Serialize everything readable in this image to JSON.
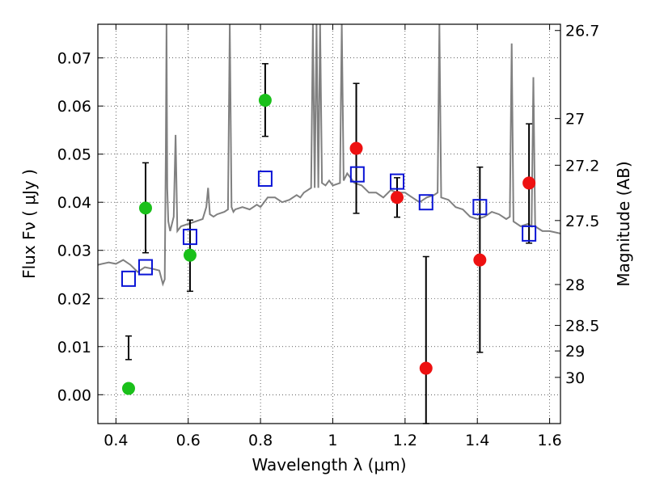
{
  "chart_data": {
    "type": "scatter",
    "xlabel": "Wavelength  λ (μm)",
    "ylabel": "Flux  Fν  ( μJy )",
    "y2label": "Magnitude (AB)",
    "xlim": [
      0.35,
      1.63
    ],
    "ylim": [
      -0.006,
      0.077
    ],
    "grid": true,
    "x_ticks": [
      0.4,
      0.6,
      0.8,
      1.0,
      1.2,
      1.4,
      1.6
    ],
    "x_tick_labels": [
      "0.4",
      "0.6",
      "0.8",
      "1",
      "1.2",
      "1.4",
      "1.6"
    ],
    "y_ticks": [
      0.0,
      0.01,
      0.02,
      0.03,
      0.04,
      0.05,
      0.06,
      0.07
    ],
    "y_tick_labels": [
      "0.00",
      "0.01",
      "0.02",
      "0.03",
      "0.04",
      "0.05",
      "0.06",
      "0.07"
    ],
    "y2_ticks": [
      {
        "label": "26.7",
        "flux": 0.0757
      },
      {
        "label": "27",
        "flux": 0.0574
      },
      {
        "label": "27.2",
        "flux": 0.0477
      },
      {
        "label": "27.5",
        "flux": 0.0362
      },
      {
        "label": "28",
        "flux": 0.0229
      },
      {
        "label": "28.5",
        "flux": 0.0144
      },
      {
        "label": "29",
        "flux": 0.0091
      },
      {
        "label": "30",
        "flux": 0.0036
      }
    ],
    "colors": {
      "green": "#1ac01a",
      "red": "#ee1111",
      "blue": "#0a14d6",
      "spectrum": "#808080",
      "errorbar": "#000000"
    },
    "series": [
      {
        "name": "green-measurements",
        "color": "#1ac01a",
        "marker": "circle",
        "points": [
          {
            "x": 0.435,
            "y": 0.0013,
            "err_low": 0.0073,
            "err_high": 0.0122
          },
          {
            "x": 0.482,
            "y": 0.0388,
            "err_low": 0.0295,
            "err_high": 0.0482
          },
          {
            "x": 0.605,
            "y": 0.029,
            "err_low": 0.0215,
            "err_high": 0.0363
          },
          {
            "x": 0.813,
            "y": 0.0612,
            "err_low": 0.0537,
            "err_high": 0.0688
          }
        ]
      },
      {
        "name": "red-measurements",
        "color": "#ee1111",
        "marker": "circle",
        "points": [
          {
            "x": 1.065,
            "y": 0.0512,
            "err_low": 0.0377,
            "err_high": 0.0647
          },
          {
            "x": 1.178,
            "y": 0.041,
            "err_low": 0.0369,
            "err_high": 0.0451
          },
          {
            "x": 1.258,
            "y": 0.0055,
            "err_low": -0.006,
            "err_high": 0.0287
          },
          {
            "x": 1.407,
            "y": 0.028,
            "err_low": 0.0088,
            "err_high": 0.0473
          },
          {
            "x": 1.543,
            "y": 0.044,
            "err_low": 0.0315,
            "err_high": 0.0563
          }
        ]
      },
      {
        "name": "model-photometry",
        "color": "#0a14d6",
        "marker": "open-square",
        "points": [
          {
            "x": 0.435,
            "y": 0.0241
          },
          {
            "x": 0.482,
            "y": 0.0265
          },
          {
            "x": 0.605,
            "y": 0.0328
          },
          {
            "x": 0.813,
            "y": 0.0449
          },
          {
            "x": 1.068,
            "y": 0.0458
          },
          {
            "x": 1.178,
            "y": 0.0443
          },
          {
            "x": 1.258,
            "y": 0.04
          },
          {
            "x": 1.407,
            "y": 0.039
          },
          {
            "x": 1.543,
            "y": 0.0335
          }
        ]
      }
    ],
    "spectrum": {
      "name": "model-spectrum",
      "color": "#808080",
      "x": [
        0.35,
        0.38,
        0.4,
        0.42,
        0.44,
        0.46,
        0.48,
        0.5,
        0.52,
        0.53,
        0.535,
        0.538,
        0.54,
        0.542,
        0.545,
        0.55,
        0.56,
        0.565,
        0.57,
        0.58,
        0.6,
        0.62,
        0.64,
        0.65,
        0.655,
        0.66,
        0.67,
        0.68,
        0.7,
        0.71,
        0.715,
        0.72,
        0.725,
        0.73,
        0.75,
        0.77,
        0.78,
        0.79,
        0.8,
        0.82,
        0.84,
        0.86,
        0.88,
        0.9,
        0.91,
        0.92,
        0.94,
        0.945,
        0.95,
        0.955,
        0.96,
        0.965,
        0.97,
        0.98,
        0.99,
        1.0,
        1.02,
        1.025,
        1.03,
        1.04,
        1.06,
        1.08,
        1.1,
        1.12,
        1.14,
        1.16,
        1.18,
        1.2,
        1.22,
        1.24,
        1.26,
        1.28,
        1.29,
        1.295,
        1.3,
        1.32,
        1.34,
        1.36,
        1.38,
        1.4,
        1.42,
        1.44,
        1.46,
        1.48,
        1.49,
        1.495,
        1.5,
        1.52,
        1.54,
        1.55,
        1.555,
        1.56,
        1.57,
        1.58,
        1.6,
        1.63
      ],
      "y": [
        0.027,
        0.0275,
        0.0272,
        0.028,
        0.027,
        0.0255,
        0.0265,
        0.0262,
        0.0258,
        0.023,
        0.024,
        0.05,
        0.077,
        0.043,
        0.036,
        0.034,
        0.037,
        0.054,
        0.034,
        0.035,
        0.0355,
        0.036,
        0.0365,
        0.039,
        0.043,
        0.0375,
        0.037,
        0.0375,
        0.038,
        0.0385,
        0.077,
        0.039,
        0.038,
        0.0385,
        0.039,
        0.0385,
        0.039,
        0.0395,
        0.039,
        0.041,
        0.041,
        0.04,
        0.0405,
        0.0415,
        0.041,
        0.042,
        0.043,
        0.077,
        0.043,
        0.077,
        0.043,
        0.077,
        0.044,
        0.0435,
        0.0445,
        0.0435,
        0.044,
        0.077,
        0.0445,
        0.046,
        0.044,
        0.0435,
        0.042,
        0.042,
        0.041,
        0.0425,
        0.042,
        0.042,
        0.041,
        0.04,
        0.041,
        0.0415,
        0.042,
        0.077,
        0.041,
        0.0405,
        0.039,
        0.0385,
        0.037,
        0.0365,
        0.037,
        0.038,
        0.0375,
        0.0365,
        0.037,
        0.073,
        0.036,
        0.035,
        0.0355,
        0.035,
        0.066,
        0.035,
        0.0345,
        0.034,
        0.034,
        0.0335
      ]
    }
  }
}
